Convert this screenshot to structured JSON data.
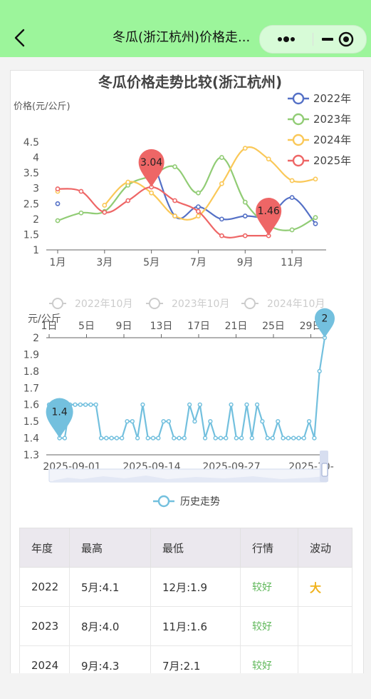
{
  "header": {
    "title": "冬瓜(浙江杭州)价格走..."
  },
  "chart_data": [
    {
      "type": "line",
      "title": "冬瓜价格走势比较(浙江杭州)",
      "ylabel": "价格(元/公斤)",
      "xlabel": "",
      "x": [
        1,
        2,
        3,
        4,
        5,
        6,
        7,
        8,
        9,
        10,
        11,
        12
      ],
      "xticks": [
        "1月",
        "3月",
        "5月",
        "7月",
        "9月",
        "11月"
      ],
      "yticks": [
        "1",
        "1.5",
        "2",
        "2.5",
        "3",
        "3.5",
        "4",
        "4.5"
      ],
      "ylim": [
        1,
        4.5
      ],
      "legend_position": "top-right",
      "series": [
        {
          "name": "2022年",
          "color": "#5470c6",
          "values": [
            2.5,
            null,
            null,
            null,
            4.1,
            2.1,
            2.4,
            2.0,
            2.1,
            2.1,
            2.7,
            1.85
          ]
        },
        {
          "name": "2023年",
          "color": "#91cc75",
          "values": [
            1.95,
            2.2,
            2.25,
            3.1,
            3.4,
            3.7,
            2.85,
            4.0,
            2.55,
            1.8,
            1.65,
            2.05
          ]
        },
        {
          "name": "2024年",
          "color": "#fac858",
          "values": [
            2.9,
            null,
            2.45,
            3.2,
            2.85,
            2.1,
            2.1,
            3.15,
            4.3,
            3.95,
            3.25,
            3.3
          ]
        },
        {
          "name": "2025年",
          "color": "#ee6666",
          "values": [
            2.98,
            2.9,
            2.22,
            2.6,
            3.04,
            2.6,
            2.25,
            1.46,
            1.46,
            1.46,
            null,
            null
          ]
        }
      ],
      "annotations": [
        {
          "series": "2025年",
          "x": 5,
          "label": "3.04"
        },
        {
          "series": "2025年",
          "x": 10,
          "label": "1.46"
        }
      ]
    },
    {
      "type": "line",
      "title": "",
      "ylabel": "元/公斤",
      "ylim": [
        1.3,
        2
      ],
      "yticks": [
        "1.3",
        "1.4",
        "1.5",
        "1.6",
        "1.7",
        "1.8",
        "1.9",
        "2"
      ],
      "top_axis_ticks": [
        "1日",
        "5日",
        "9日",
        "13日",
        "17日",
        "21日",
        "25日",
        "29日"
      ],
      "bottom_axis_ticks": [
        "2025-09-01",
        "2025-09-14",
        "2025-09-27",
        "2025-10-"
      ],
      "top_legend": [
        "2022年10月",
        "2023年10月",
        "2024年10月"
      ],
      "series": [
        {
          "name": "历史走势",
          "color": "#73c0de",
          "values": [
            1.6,
            1.6,
            1.4,
            1.4,
            1.6,
            1.6,
            1.6,
            1.6,
            1.6,
            1.6,
            1.4,
            1.4,
            1.4,
            1.4,
            1.4,
            1.5,
            1.5,
            1.4,
            1.6,
            1.4,
            1.4,
            1.4,
            1.5,
            1.5,
            1.4,
            1.4,
            1.4,
            1.6,
            1.5,
            1.6,
            1.4,
            1.5,
            1.4,
            1.4,
            1.4,
            1.6,
            1.4,
            1.4,
            1.6,
            1.4,
            1.6,
            1.5,
            1.4,
            1.4,
            1.5,
            1.4,
            1.4,
            1.4,
            1.4,
            1.4,
            1.5,
            1.4,
            1.8,
            2.0
          ]
        }
      ],
      "annotations": [
        {
          "label": "1.4"
        },
        {
          "label": "2"
        }
      ]
    }
  ],
  "table": {
    "headers": [
      "年度",
      "最高",
      "最低",
      "行情",
      "波动"
    ],
    "rows": [
      {
        "year": "2022",
        "high": "5月:4.1",
        "low": "12月:1.9",
        "trend": "较好",
        "vol": "大"
      },
      {
        "year": "2023",
        "high": "8月:4.0",
        "low": "11月:1.6",
        "trend": "较好",
        "vol": ""
      },
      {
        "year": "2024",
        "high": "9月:4.3",
        "low": "7月:2.1",
        "trend": "较好",
        "vol": ""
      }
    ]
  }
}
